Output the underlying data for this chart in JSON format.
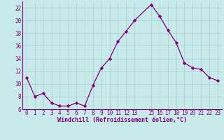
{
  "x": [
    0,
    1,
    2,
    3,
    4,
    5,
    6,
    7,
    8,
    9,
    10,
    11,
    12,
    13,
    15,
    16,
    17,
    18,
    19,
    20,
    21,
    22,
    23
  ],
  "y": [
    11,
    8,
    8.5,
    7,
    6.5,
    6.5,
    7,
    6.5,
    9.8,
    12.5,
    14,
    16.7,
    18.3,
    20,
    22.5,
    20.7,
    18.5,
    16.5,
    13.3,
    12.5,
    12.3,
    11,
    10.5
  ],
  "line_color": "#800080",
  "marker_color": "#800080",
  "bg_color": "#c8eaea",
  "grid_color": "#acd4d4",
  "xlabel": "Windchill (Refroidissement éolien,°C)",
  "xlabel_color": "#800080",
  "tick_color": "#800080",
  "spine_color": "#800080",
  "ylim": [
    6,
    23
  ],
  "xlim": [
    -0.5,
    23.5
  ],
  "yticks": [
    6,
    8,
    10,
    12,
    14,
    16,
    18,
    20,
    22
  ],
  "xticks": [
    0,
    1,
    2,
    3,
    4,
    5,
    6,
    7,
    8,
    9,
    10,
    11,
    12,
    13,
    15,
    16,
    17,
    18,
    19,
    20,
    21,
    22,
    23
  ],
  "xlabel_fontsize": 6.0,
  "tick_fontsize": 5.5
}
